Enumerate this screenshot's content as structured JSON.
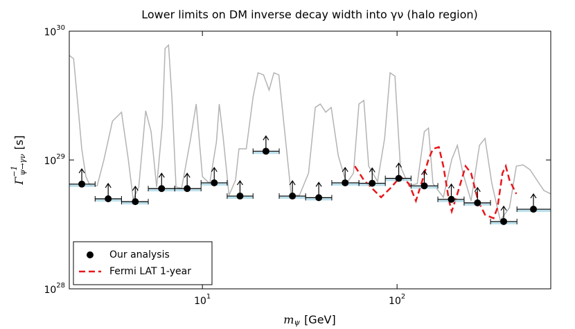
{
  "chart_data": {
    "type": "scatter",
    "title": "Lower limits on DM inverse decay width into γν (halo region)",
    "xlabel": {
      "symbol": "m",
      "sub": "ψ",
      "unit": "[GeV]"
    },
    "ylabel": {
      "symbol": "Γ",
      "sup": "−1",
      "sub": "ψ→γν",
      "unit": "[s]"
    },
    "xscale": "log",
    "yscale": "log",
    "xlim": [
      2.07,
      616
    ],
    "ylim": [
      1e+28,
      1e+30
    ],
    "xticks": [
      {
        "value": 10,
        "label": "10",
        "exponent": "1"
      },
      {
        "value": 100,
        "label": "10",
        "exponent": "2"
      }
    ],
    "yticks": [
      {
        "value": 1e+28,
        "label": "10",
        "exponent": "28"
      },
      {
        "value": 1e+29,
        "label": "10",
        "exponent": "29"
      },
      {
        "value": 1e+30,
        "label": "10",
        "exponent": "30"
      }
    ],
    "legend": "lower left",
    "series": [
      {
        "name": "Our analysis",
        "color": "#000000",
        "style": "point",
        "x": [
          2.4,
          3.28,
          4.52,
          6.17,
          8.35,
          11.5,
          15.6,
          21.2,
          29.0,
          39.6,
          54.1,
          74.5,
          102,
          138,
          190,
          259,
          353,
          502
        ],
        "values": [
          6.5e+28,
          5e+28,
          4.75e+28,
          6e+28,
          6e+28,
          6.65e+28,
          5.25e+28,
          1.17e+29,
          5.25e+28,
          5.1e+28,
          6.65e+28,
          6.6e+28,
          7.2e+28,
          6.3e+28,
          4.95e+28,
          4.65e+28,
          3.33e+28,
          4.15e+28
        ],
        "bins": [
          2.07,
          2.81,
          3.84,
          5.27,
          7.21,
          9.84,
          13.4,
          18.2,
          24.8,
          33.9,
          46.2,
          63.7,
          87.0,
          118,
          162,
          221,
          302,
          413,
          616
        ]
      },
      {
        "name": "Fermi LAT 1-year",
        "color": "#e8161b",
        "style": "dashed",
        "x": [
          60.7,
          67.5,
          82.8,
          93.7,
          104,
          115,
          125,
          135,
          145,
          153,
          164,
          173,
          185,
          191,
          204,
          225,
          240,
          261,
          283,
          313,
          328,
          348,
          362,
          378,
          410
        ],
        "values": [
          8.96e+28,
          6.98e+28,
          5.13e+28,
          6.17e+28,
          7.43e+28,
          6.56e+28,
          4.82e+28,
          6.98e+28,
          1.01e+29,
          1.22e+29,
          1.26e+29,
          8.96e+28,
          4.82e+28,
          4e+28,
          5.46e+28,
          8.96e+28,
          7.9e+28,
          4.82e+28,
          3.76e+28,
          3.53e+28,
          4.26e+28,
          7.9e+28,
          8.96e+28,
          6.98e+28,
          5.46e+28
        ]
      },
      {
        "color": "#b3b3b3",
        "style": "line",
        "x": [
          2.07,
          2.18,
          2.29,
          2.4,
          2.52,
          2.65,
          2.88,
          3.12,
          3.45,
          3.84,
          4.16,
          4.41,
          4.71,
          5.11,
          5.45,
          5.82,
          6.22,
          6.43,
          6.7,
          6.97,
          7.32,
          7.82,
          8.7,
          9.29,
          10.0,
          10.9,
          11.8,
          12.2,
          12.8,
          13.7,
          14.8,
          15.4,
          16.8,
          18.2,
          19.3,
          20.6,
          22.0,
          23.3,
          24.7,
          26.7,
          28.6,
          31.5,
          35.1,
          38.0,
          40.3,
          43.0,
          45.9,
          49.9,
          55.0,
          59.7,
          63.7,
          67.5,
          71.5,
          79.4,
          86.3,
          92.1,
          97.5,
          104,
          115,
          127,
          138,
          145,
          153,
          173,
          191,
          204,
          218,
          240,
          265,
          283,
          307,
          339,
          378,
          410,
          444,
          482,
          523,
          568,
          616
        ],
        "values": [
          6.49e+29,
          6.1e+29,
          2.72e+29,
          1.22e+29,
          7.43e+28,
          6.32e+28,
          6.32e+28,
          1.01e+29,
          2e+29,
          2.35e+29,
          1.01e+29,
          4.94e+28,
          6.17e+28,
          2.41e+29,
          1.66e+29,
          6.17e+28,
          1.88e+29,
          7.35e+29,
          7.8e+29,
          3.08e+29,
          6.17e+28,
          6.03e+28,
          1.47e+29,
          2.72e+29,
          7.43e+28,
          6.56e+28,
          1.38e+29,
          2.72e+29,
          1.47e+29,
          5.32e+28,
          6.98e+28,
          1.22e+29,
          1.22e+29,
          3.08e+29,
          4.75e+29,
          4.58e+29,
          3.49e+29,
          4.75e+29,
          4.58e+29,
          1.47e+29,
          5.32e+28,
          5.32e+28,
          7.9e+28,
          2.56e+29,
          2.72e+29,
          2.35e+29,
          2.56e+29,
          1.08e+29,
          6.56e+28,
          7.9e+28,
          2.72e+29,
          2.9e+29,
          8.96e+28,
          6.81e+28,
          1.47e+29,
          4.75e+29,
          4.48e+29,
          8.96e+28,
          6.32e+28,
          6.56e+28,
          1.66e+29,
          1.77e+29,
          6.56e+28,
          5.13e+28,
          1.01e+29,
          1.3e+29,
          7.9e+28,
          4.82e+28,
          1.3e+29,
          1.47e+29,
          6.56e+28,
          3.4e+28,
          4.26e+28,
          8.96e+28,
          9.17e+28,
          8.41e+28,
          6.98e+28,
          5.8e+28,
          5.46e+28
        ]
      }
    ]
  }
}
